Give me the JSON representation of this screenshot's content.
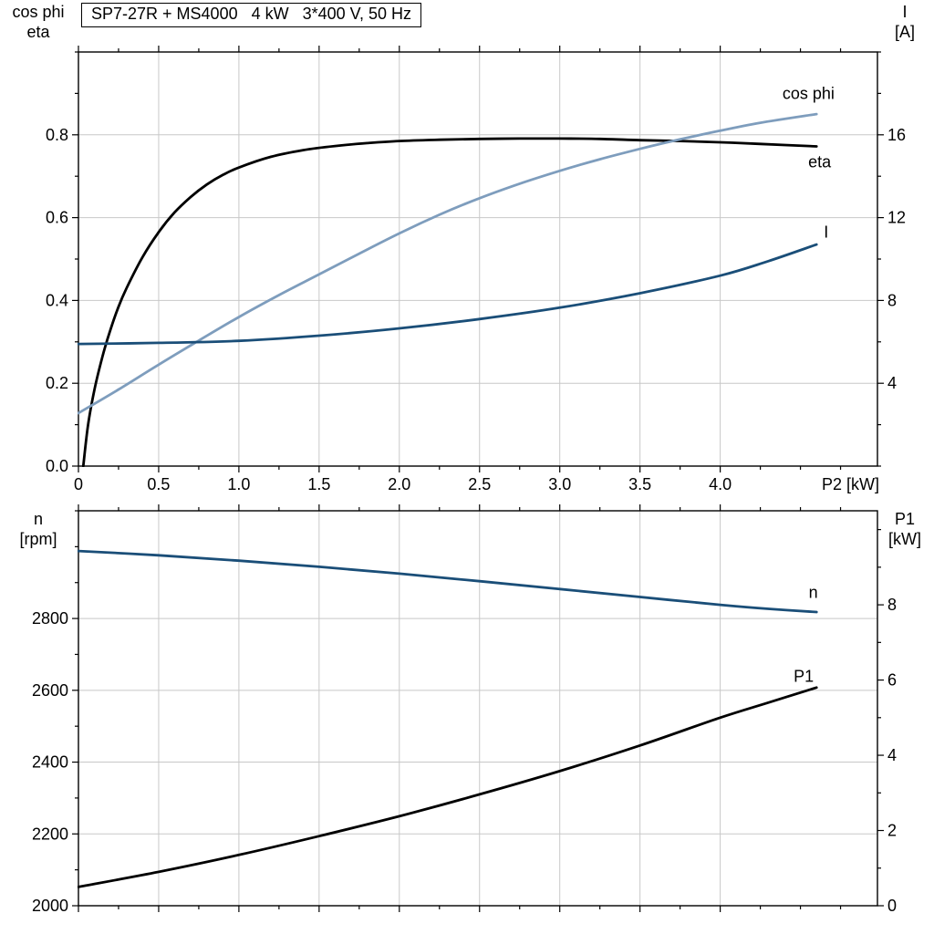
{
  "page": {
    "background": "#ffffff"
  },
  "palette": {
    "black": "#000000",
    "dark_blue": "#1a4e78",
    "light_blue": "#7e9dbd",
    "grid": "#c8c8c8",
    "frame": "#000000",
    "text": "#000000"
  },
  "corner_labels": {
    "top_left": [
      "cos phi",
      "eta"
    ],
    "top_right": [
      "I",
      "[A]"
    ],
    "bottom_left": [
      "n",
      "[rpm]"
    ],
    "bottom_right": [
      "P1",
      "[kW]"
    ]
  },
  "chart_data": [
    {
      "type": "line",
      "title": "SP7-27R + MS4000   4 kW   3*400 V, 50 Hz",
      "x": {
        "label": "P2 [kW]",
        "min": 0,
        "max": 4.98,
        "ticks": [
          0,
          0.5,
          1,
          1.5,
          2,
          2.5,
          3,
          3.5,
          4
        ],
        "tick_labels": [
          "0",
          "0.5",
          "1.0",
          "1.5",
          "2.0",
          "2.5",
          "3.0",
          "3.5",
          "4.0"
        ],
        "minor_step": 0.25,
        "show_labels": true
      },
      "y_left": {
        "label": "cos phi / eta",
        "min": 0,
        "max": 1.0,
        "ticks": [
          0,
          0.2,
          0.4,
          0.6,
          0.8
        ],
        "tick_labels": [
          "0.0",
          "0.2",
          "0.4",
          "0.6",
          "0.8"
        ],
        "minor_step": 0.1
      },
      "y_right": {
        "label": "I [A]",
        "min": 0,
        "max": 20,
        "ticks": [
          4,
          8,
          12,
          16
        ],
        "tick_labels": [
          "4",
          "8",
          "12",
          "16"
        ],
        "minor_step": 2
      },
      "grid": true,
      "series": [
        {
          "name": "eta",
          "label": "eta",
          "color": "black",
          "axis": "left",
          "label_anchor": [
            4.62,
            0.735
          ],
          "points": [
            [
              0.03,
              0
            ],
            [
              0.06,
              0.1
            ],
            [
              0.1,
              0.185
            ],
            [
              0.15,
              0.265
            ],
            [
              0.2,
              0.33
            ],
            [
              0.25,
              0.385
            ],
            [
              0.3,
              0.43
            ],
            [
              0.4,
              0.505
            ],
            [
              0.5,
              0.565
            ],
            [
              0.6,
              0.613
            ],
            [
              0.7,
              0.65
            ],
            [
              0.8,
              0.68
            ],
            [
              0.9,
              0.703
            ],
            [
              1,
              0.721
            ],
            [
              1.2,
              0.747
            ],
            [
              1.4,
              0.763
            ],
            [
              1.6,
              0.773
            ],
            [
              1.8,
              0.78
            ],
            [
              2,
              0.785
            ],
            [
              2.25,
              0.788
            ],
            [
              2.5,
              0.79
            ],
            [
              2.75,
              0.791
            ],
            [
              3,
              0.791
            ],
            [
              3.25,
              0.79
            ],
            [
              3.5,
              0.787
            ],
            [
              3.75,
              0.785
            ],
            [
              4,
              0.782
            ],
            [
              4.25,
              0.778
            ],
            [
              4.6,
              0.772
            ]
          ]
        },
        {
          "name": "cos-phi",
          "label": "cos phi",
          "color": "light_blue",
          "axis": "left",
          "label_anchor": [
            4.55,
            0.9
          ],
          "points": [
            [
              0,
              0.128
            ],
            [
              0.25,
              0.185
            ],
            [
              0.5,
              0.245
            ],
            [
              0.75,
              0.303
            ],
            [
              1,
              0.36
            ],
            [
              1.25,
              0.413
            ],
            [
              1.5,
              0.463
            ],
            [
              1.75,
              0.513
            ],
            [
              2,
              0.562
            ],
            [
              2.25,
              0.607
            ],
            [
              2.5,
              0.647
            ],
            [
              2.75,
              0.682
            ],
            [
              3,
              0.713
            ],
            [
              3.25,
              0.741
            ],
            [
              3.5,
              0.766
            ],
            [
              3.75,
              0.789
            ],
            [
              4,
              0.81
            ],
            [
              4.25,
              0.829
            ],
            [
              4.6,
              0.85
            ]
          ]
        },
        {
          "name": "current",
          "label": "I",
          "color": "dark_blue",
          "axis": "right",
          "label_anchor": [
            4.66,
            11.3
          ],
          "points": [
            [
              0,
              5.9
            ],
            [
              0.5,
              5.95
            ],
            [
              1,
              6.05
            ],
            [
              1.5,
              6.3
            ],
            [
              2,
              6.65
            ],
            [
              2.5,
              7.1
            ],
            [
              3,
              7.65
            ],
            [
              3.5,
              8.35
            ],
            [
              4,
              9.2
            ],
            [
              4.3,
              9.9
            ],
            [
              4.6,
              10.7
            ]
          ]
        }
      ]
    },
    {
      "type": "line",
      "title": "",
      "x": {
        "label": "",
        "min": 0,
        "max": 4.98,
        "ticks": [
          0,
          0.5,
          1,
          1.5,
          2,
          2.5,
          3,
          3.5,
          4
        ],
        "tick_labels": [],
        "minor_step": 0.25,
        "show_labels": false
      },
      "y_left": {
        "label": "n [rpm]",
        "min": 2000,
        "max": 3100,
        "ticks": [
          2000,
          2200,
          2400,
          2600,
          2800
        ],
        "tick_labels": [
          "2000",
          "2200",
          "2400",
          "2600",
          "2800"
        ],
        "minor_step": 100
      },
      "y_right": {
        "label": "P1 [kW]",
        "min": 0,
        "max": 10.5,
        "ticks": [
          0,
          2,
          4,
          6,
          8
        ],
        "tick_labels": [
          "0",
          "2",
          "4",
          "6",
          "8"
        ],
        "minor_step": 1
      },
      "grid": true,
      "series": [
        {
          "name": "speed",
          "label": "n",
          "color": "dark_blue",
          "axis": "left",
          "label_anchor": [
            4.58,
            2872
          ],
          "points": [
            [
              0,
              2988
            ],
            [
              0.5,
              2976
            ],
            [
              1,
              2961
            ],
            [
              1.5,
              2944
            ],
            [
              2,
              2925
            ],
            [
              2.5,
              2904
            ],
            [
              3,
              2882
            ],
            [
              3.5,
              2860
            ],
            [
              4,
              2838
            ],
            [
              4.3,
              2827
            ],
            [
              4.6,
              2818
            ]
          ]
        },
        {
          "name": "p1",
          "label": "P1",
          "color": "black",
          "axis": "right",
          "label_anchor": [
            4.52,
            6.1
          ],
          "points": [
            [
              0,
              0.5
            ],
            [
              0.5,
              0.9
            ],
            [
              1,
              1.35
            ],
            [
              1.5,
              1.85
            ],
            [
              2,
              2.38
            ],
            [
              2.5,
              2.96
            ],
            [
              3,
              3.58
            ],
            [
              3.5,
              4.26
            ],
            [
              4,
              5.0
            ],
            [
              4.3,
              5.4
            ],
            [
              4.6,
              5.8
            ]
          ]
        }
      ]
    }
  ]
}
